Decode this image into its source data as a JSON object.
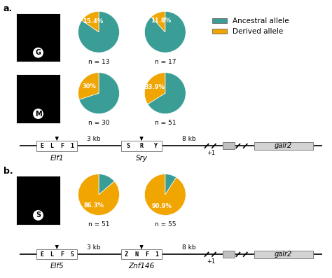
{
  "chart_data": [
    {
      "type": "image",
      "title": "a.",
      "annotations": [
        "G"
      ],
      "color": "#000000"
    },
    {
      "type": "image",
      "annotations": [
        "M"
      ],
      "color": "#000000"
    },
    {
      "type": "image",
      "title": "b.",
      "annotations": [
        "S"
      ],
      "color": "#000000"
    },
    {
      "type": "pie",
      "categories": [
        "Ancestral allele",
        "Derived allele"
      ],
      "values": [
        84.6,
        15.4
      ],
      "value_labels": [
        null,
        "15.4%"
      ],
      "colors": [
        "#3a9d96",
        "#f0a500"
      ],
      "annotations": [
        "n = 13"
      ],
      "legend": "upper left"
    },
    {
      "type": "pie",
      "categories": [
        "Ancestral allele",
        "Derived allele"
      ],
      "values": [
        88.2,
        11.8
      ],
      "value_labels": [
        null,
        "11.8%"
      ],
      "colors": [
        "#3a9d96",
        "#f0a500"
      ],
      "annotations": [
        "n = 17"
      ]
    },
    {
      "type": "pie",
      "categories": [
        "Ancestral allele",
        "Derived allele"
      ],
      "values": [
        70.0,
        30.0
      ],
      "value_labels": [
        null,
        "30%"
      ],
      "colors": [
        "#3a9d96",
        "#f0a500"
      ],
      "annotations": [
        "n = 30"
      ]
    },
    {
      "type": "pie",
      "categories": [
        "Ancestral allele",
        "Derived allele"
      ],
      "values": [
        66.1,
        33.9
      ],
      "value_labels": [
        null,
        "33.9%"
      ],
      "colors": [
        "#3a9d96",
        "#f0a500"
      ],
      "annotations": [
        "n = 51"
      ]
    },
    {
      "type": "pie",
      "categories": [
        "Ancestral allele",
        "Derived allele"
      ],
      "values": [
        13.7,
        86.3
      ],
      "value_labels": [
        null,
        "86.3%"
      ],
      "colors": [
        "#3a9d96",
        "#f0a500"
      ],
      "annotations": [
        "n = 51"
      ]
    },
    {
      "type": "pie",
      "categories": [
        "Ancestral allele",
        "Derived allele"
      ],
      "values": [
        9.1,
        90.9
      ],
      "value_labels": [
        null,
        "90.9%"
      ],
      "colors": [
        "#3a9d96",
        "#f0a500"
      ],
      "annotations": [
        "n = 55"
      ]
    },
    {
      "type": "diagram",
      "annotations": [
        "Elf1",
        "ELF1",
        "3 kb",
        "Sry",
        "SRY",
        "8 kb",
        "+1",
        "galr2"
      ]
    },
    {
      "type": "diagram",
      "annotations": [
        "Elf5",
        "ELF5",
        "3 kb",
        "Znf146",
        "ZNF1",
        "8 kb",
        "+1",
        "galr2"
      ]
    }
  ]
}
